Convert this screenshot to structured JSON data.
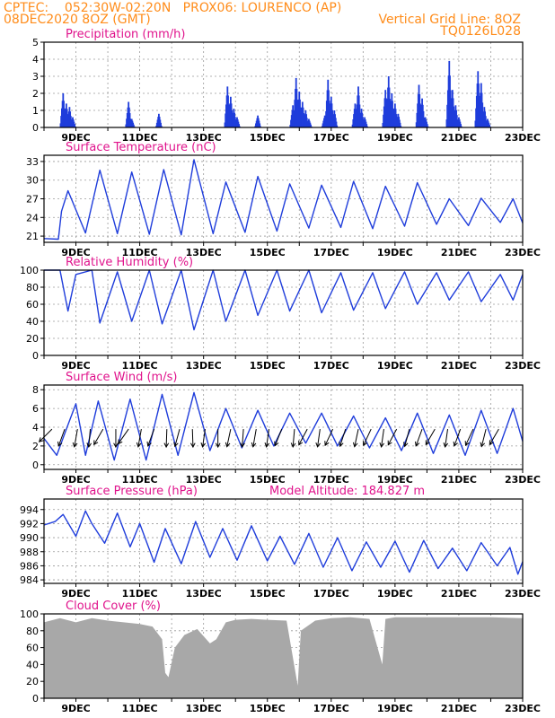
{
  "header": {
    "line1_left": "CPTEC:    052:30W-02:20N   PROX06: LOURENCO (AP)",
    "line2_left": "08DEC2020 8OZ (GMT)",
    "line2_right": "Vertical Grid Line: 8OZ",
    "line3_right": "TQ0126L028"
  },
  "colors": {
    "header": "#ff8c1a",
    "titles": "#e0138c",
    "series": "#1f3ddb",
    "cloud": "#a8a8a8"
  },
  "x_axis": {
    "start": "08DEC2020 08Z",
    "end": "23DEC2020 08Z",
    "tick_labels": [
      "9DEC",
      "11DEC",
      "13DEC",
      "15DEC",
      "17DEC",
      "19DEC",
      "21DEC",
      "23DEC"
    ],
    "grid": "vertical dashed lines at 08Z daily"
  },
  "chart_data": [
    {
      "type": "bar",
      "title": "Precipitation (mm/h)",
      "ylim": [
        0,
        5
      ],
      "y_ticks": [
        "0",
        "1",
        "2",
        "3",
        "4",
        "5"
      ],
      "x_unit": "days since 08DEC 08Z",
      "bursts": [
        [
          0.6,
          2.0
        ],
        [
          0.7,
          1.4
        ],
        [
          0.8,
          1.2
        ],
        [
          0.9,
          0.6
        ],
        [
          2.65,
          1.5
        ],
        [
          2.75,
          0.5
        ],
        [
          3.6,
          0.8
        ],
        [
          5.75,
          2.4
        ],
        [
          5.85,
          1.8
        ],
        [
          5.95,
          1.1
        ],
        [
          6.05,
          0.6
        ],
        [
          6.7,
          0.7
        ],
        [
          7.8,
          1.3
        ],
        [
          7.9,
          2.9
        ],
        [
          8.0,
          2.1
        ],
        [
          8.1,
          1.5
        ],
        [
          8.2,
          1.0
        ],
        [
          8.3,
          0.5
        ],
        [
          8.8,
          0.7
        ],
        [
          8.9,
          2.8
        ],
        [
          9.0,
          1.8
        ],
        [
          9.1,
          1.0
        ],
        [
          9.75,
          1.4
        ],
        [
          9.85,
          2.4
        ],
        [
          9.95,
          1.1
        ],
        [
          10.05,
          0.6
        ],
        [
          10.7,
          2.2
        ],
        [
          10.8,
          3.0
        ],
        [
          10.9,
          2.0
        ],
        [
          11.0,
          1.4
        ],
        [
          11.1,
          0.8
        ],
        [
          11.75,
          2.5
        ],
        [
          11.85,
          1.7
        ],
        [
          11.95,
          0.6
        ],
        [
          12.7,
          3.9
        ],
        [
          12.8,
          2.2
        ],
        [
          12.9,
          1.3
        ],
        [
          13.0,
          0.6
        ],
        [
          13.6,
          3.3
        ],
        [
          13.7,
          2.6
        ],
        [
          13.8,
          1.2
        ],
        [
          13.9,
          0.5
        ]
      ]
    },
    {
      "type": "line",
      "title": "Surface Temperature (nC)",
      "ylim": [
        20,
        34
      ],
      "y_ticks": [
        "21",
        "24",
        "27",
        "30",
        "33"
      ],
      "x_unit": "days since 08DEC 08Z",
      "points": [
        [
          0.0,
          20.6
        ],
        [
          0.45,
          20.5
        ],
        [
          0.55,
          25.0
        ],
        [
          0.75,
          28.3
        ],
        [
          1.3,
          21.5
        ],
        [
          1.75,
          31.6
        ],
        [
          2.3,
          21.4
        ],
        [
          2.75,
          31.3
        ],
        [
          3.3,
          21.3
        ],
        [
          3.75,
          31.7
        ],
        [
          4.3,
          21.2
        ],
        [
          4.7,
          33.3
        ],
        [
          5.3,
          21.4
        ],
        [
          5.7,
          29.7
        ],
        [
          6.3,
          21.6
        ],
        [
          6.7,
          30.6
        ],
        [
          7.3,
          21.8
        ],
        [
          7.7,
          29.4
        ],
        [
          8.3,
          22.3
        ],
        [
          8.7,
          29.2
        ],
        [
          9.3,
          22.4
        ],
        [
          9.7,
          29.8
        ],
        [
          10.3,
          22.2
        ],
        [
          10.7,
          29.0
        ],
        [
          11.3,
          22.6
        ],
        [
          11.7,
          29.6
        ],
        [
          12.3,
          22.9
        ],
        [
          12.7,
          27.0
        ],
        [
          13.3,
          22.7
        ],
        [
          13.7,
          27.1
        ],
        [
          14.3,
          23.2
        ],
        [
          14.7,
          27.0
        ],
        [
          15.0,
          23.1
        ]
      ]
    },
    {
      "type": "line",
      "title": "Relative Humidity (%)",
      "ylim": [
        0,
        100
      ],
      "y_ticks": [
        "0",
        "20",
        "40",
        "60",
        "80",
        "100"
      ],
      "x_unit": "days since 08DEC 08Z",
      "points": [
        [
          0.0,
          100
        ],
        [
          0.5,
          100
        ],
        [
          0.75,
          52
        ],
        [
          1.0,
          95
        ],
        [
          1.5,
          100
        ],
        [
          1.75,
          38
        ],
        [
          2.3,
          98
        ],
        [
          2.75,
          40
        ],
        [
          3.3,
          100
        ],
        [
          3.7,
          37
        ],
        [
          4.3,
          100
        ],
        [
          4.7,
          30
        ],
        [
          5.3,
          100
        ],
        [
          5.7,
          40
        ],
        [
          6.3,
          100
        ],
        [
          6.7,
          47
        ],
        [
          7.3,
          100
        ],
        [
          7.7,
          52
        ],
        [
          8.3,
          100
        ],
        [
          8.7,
          50
        ],
        [
          9.3,
          97
        ],
        [
          9.7,
          53
        ],
        [
          10.3,
          97
        ],
        [
          10.7,
          55
        ],
        [
          11.3,
          98
        ],
        [
          11.7,
          60
        ],
        [
          12.3,
          97
        ],
        [
          12.7,
          65
        ],
        [
          13.3,
          98
        ],
        [
          13.7,
          63
        ],
        [
          14.3,
          95
        ],
        [
          14.7,
          65
        ],
        [
          15.0,
          95
        ]
      ]
    },
    {
      "type": "line",
      "title": "Surface Wind (m/s)",
      "ylim": [
        -0.5,
        8.5
      ],
      "y_ticks": [
        "0",
        "2",
        "4",
        "6",
        "8"
      ],
      "x_unit": "days since 08DEC 08Z",
      "points": [
        [
          0.0,
          2.8
        ],
        [
          0.4,
          1.0
        ],
        [
          0.7,
          3.8
        ],
        [
          1.0,
          6.5
        ],
        [
          1.3,
          1.0
        ],
        [
          1.7,
          6.8
        ],
        [
          2.2,
          0.5
        ],
        [
          2.7,
          7.0
        ],
        [
          3.2,
          0.5
        ],
        [
          3.7,
          7.5
        ],
        [
          4.2,
          1.0
        ],
        [
          4.7,
          7.7
        ],
        [
          5.2,
          1.5
        ],
        [
          5.7,
          6.0
        ],
        [
          6.2,
          1.8
        ],
        [
          6.7,
          5.8
        ],
        [
          7.2,
          2.0
        ],
        [
          7.7,
          5.5
        ],
        [
          8.2,
          2.3
        ],
        [
          8.7,
          5.5
        ],
        [
          9.2,
          2.0
        ],
        [
          9.7,
          5.2
        ],
        [
          10.2,
          1.8
        ],
        [
          10.7,
          5.0
        ],
        [
          11.2,
          1.5
        ],
        [
          11.7,
          5.5
        ],
        [
          12.2,
          1.2
        ],
        [
          12.7,
          5.3
        ],
        [
          13.2,
          1.0
        ],
        [
          13.7,
          5.8
        ],
        [
          14.2,
          1.2
        ],
        [
          14.7,
          6.0
        ],
        [
          15.0,
          2.5
        ]
      ],
      "wind_arrows": [
        [
          0.25,
          225
        ],
        [
          0.65,
          250
        ],
        [
          1.05,
          260
        ],
        [
          1.45,
          265
        ],
        [
          1.85,
          240
        ],
        [
          2.25,
          270
        ],
        [
          2.65,
          235
        ],
        [
          3.05,
          260
        ],
        [
          3.45,
          250
        ],
        [
          3.85,
          268
        ],
        [
          4.25,
          255
        ],
        [
          4.65,
          272
        ],
        [
          5.05,
          262
        ],
        [
          5.45,
          270
        ],
        [
          5.85,
          258
        ],
        [
          6.25,
          266
        ],
        [
          6.65,
          260
        ],
        [
          7.05,
          262
        ],
        [
          7.45,
          248
        ],
        [
          7.85,
          265
        ],
        [
          8.25,
          242
        ],
        [
          8.65,
          262
        ],
        [
          9.05,
          245
        ],
        [
          9.45,
          252
        ],
        [
          9.85,
          258
        ],
        [
          10.25,
          245
        ],
        [
          10.65,
          262
        ],
        [
          11.05,
          242
        ],
        [
          11.45,
          255
        ],
        [
          11.85,
          250
        ],
        [
          12.25,
          240
        ],
        [
          12.65,
          262
        ],
        [
          13.05,
          250
        ],
        [
          13.45,
          245
        ],
        [
          13.85,
          256
        ],
        [
          14.25,
          240
        ]
      ]
    },
    {
      "type": "line",
      "title": "Surface Pressure (hPa)",
      "subtitle": "Model Altitude: 184.827 m",
      "ylim": [
        983.5,
        995.5
      ],
      "y_ticks": [
        "984",
        "986",
        "988",
        "990",
        "992",
        "994"
      ],
      "x_unit": "days since 08DEC 08Z",
      "points": [
        [
          0.0,
          991.8
        ],
        [
          0.35,
          992.3
        ],
        [
          0.6,
          993.3
        ],
        [
          1.0,
          990.2
        ],
        [
          1.3,
          993.8
        ],
        [
          1.5,
          992.0
        ],
        [
          1.9,
          989.2
        ],
        [
          2.3,
          993.5
        ],
        [
          2.7,
          988.7
        ],
        [
          3.0,
          992.0
        ],
        [
          3.45,
          986.5
        ],
        [
          3.8,
          991.3
        ],
        [
          4.3,
          986.3
        ],
        [
          4.75,
          992.3
        ],
        [
          5.2,
          987.2
        ],
        [
          5.6,
          991.3
        ],
        [
          6.05,
          986.8
        ],
        [
          6.5,
          991.7
        ],
        [
          7.0,
          986.7
        ],
        [
          7.4,
          990.2
        ],
        [
          7.85,
          986.2
        ],
        [
          8.3,
          990.6
        ],
        [
          8.75,
          985.8
        ],
        [
          9.2,
          990.0
        ],
        [
          9.65,
          985.3
        ],
        [
          10.1,
          989.4
        ],
        [
          10.55,
          985.8
        ],
        [
          11.0,
          989.5
        ],
        [
          11.45,
          985.1
        ],
        [
          11.9,
          989.6
        ],
        [
          12.35,
          985.6
        ],
        [
          12.8,
          988.5
        ],
        [
          13.25,
          985.3
        ],
        [
          13.7,
          989.3
        ],
        [
          14.2,
          986.0
        ],
        [
          14.6,
          988.6
        ],
        [
          14.85,
          984.8
        ],
        [
          15.0,
          986.6
        ]
      ]
    },
    {
      "type": "area",
      "title": "Cloud Cover (%)",
      "ylim": [
        0,
        100
      ],
      "y_ticks": [
        "0",
        "20",
        "40",
        "60",
        "80",
        "100"
      ],
      "x_unit": "days since 08DEC 08Z",
      "points": [
        [
          0.0,
          90
        ],
        [
          0.5,
          95
        ],
        [
          1.0,
          90
        ],
        [
          1.5,
          95
        ],
        [
          2.0,
          92
        ],
        [
          2.5,
          90
        ],
        [
          3.0,
          88
        ],
        [
          3.4,
          85
        ],
        [
          3.7,
          70
        ],
        [
          3.8,
          30
        ],
        [
          3.9,
          25
        ],
        [
          4.1,
          60
        ],
        [
          4.4,
          75
        ],
        [
          4.8,
          82
        ],
        [
          5.2,
          65
        ],
        [
          5.4,
          70
        ],
        [
          5.7,
          90
        ],
        [
          6.0,
          93
        ],
        [
          6.5,
          94
        ],
        [
          7.0,
          93
        ],
        [
          7.6,
          92
        ],
        [
          7.95,
          15
        ],
        [
          8.05,
          80
        ],
        [
          8.5,
          92
        ],
        [
          9.0,
          95
        ],
        [
          9.6,
          96
        ],
        [
          10.2,
          94
        ],
        [
          10.6,
          40
        ],
        [
          10.7,
          94
        ],
        [
          11.0,
          96
        ],
        [
          12.0,
          96
        ],
        [
          13.0,
          96
        ],
        [
          14.0,
          96
        ],
        [
          15.0,
          95
        ]
      ]
    }
  ]
}
